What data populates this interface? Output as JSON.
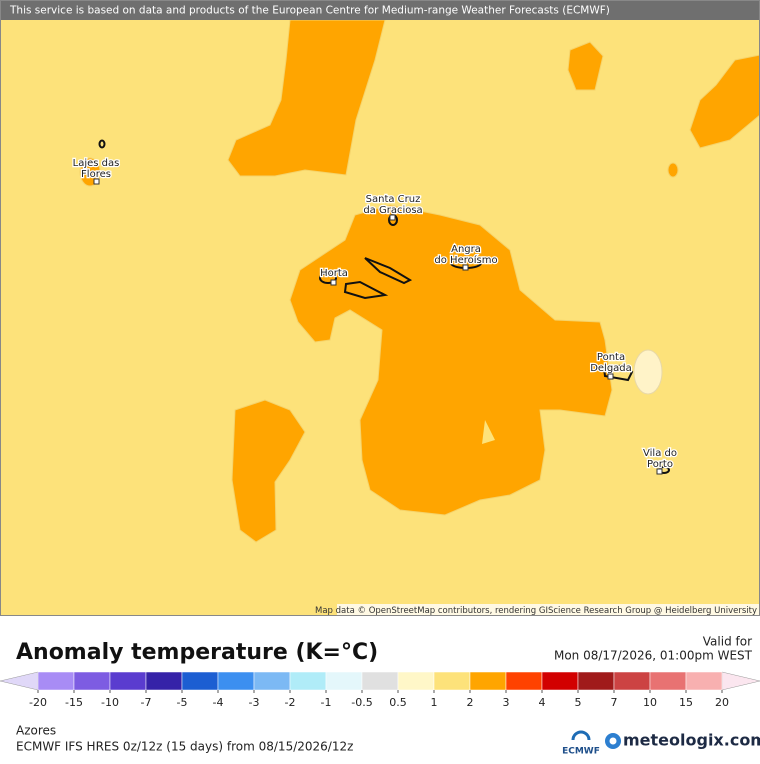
{
  "banner": "This service is based on data and products of the European Centre for Medium-range Weather Forecasts (ECMWF)",
  "attribution": "Map data © OpenStreetMap contributors, rendering GIScience Research Group @ Heidelberg University",
  "cities": [
    {
      "lines": [
        "Lajes das",
        "Flores"
      ]
    },
    {
      "lines": [
        "Santa Cruz",
        "da Graciosa"
      ]
    },
    {
      "lines": [
        "Horta"
      ]
    },
    {
      "lines": [
        "Angra",
        "do Heroísmo"
      ]
    },
    {
      "lines": [
        "Ponta",
        "Delgada"
      ]
    },
    {
      "lines": [
        "Vila do",
        "Porto"
      ]
    }
  ],
  "title": "Anomaly temperature (K=°C)",
  "valid_label": "Valid for",
  "valid_time": "Mon 08/17/2026, 01:00pm WEST",
  "legend": {
    "ticks": [
      -20,
      -15,
      -10,
      -7,
      -5,
      -4,
      -3,
      -2,
      -1,
      -0.5,
      0.5,
      1,
      2,
      3,
      4,
      5,
      7,
      10,
      15,
      20
    ],
    "colors": [
      "#a88cf5",
      "#7d5ce2",
      "#5a3ccf",
      "#3522a8",
      "#1c5ed2",
      "#3c8ff0",
      "#7cb9f4",
      "#b0ecf8",
      "#e4f7fb",
      "#e0e0e0",
      "#fff7c8",
      "#fde27a",
      "#ffa500",
      "#ff4200",
      "#d20000",
      "#a01a1a",
      "#cc4343",
      "#e87272",
      "#f8b0b0"
    ],
    "low_color": "#e0d8f8",
    "high_color": "#fbe6ef"
  },
  "region": "Azores",
  "model": "ECMWF IFS HRES 0z/12z (15 days) from 08/15/2026/12z",
  "logo_ecmwf": "ECMWF",
  "logo_site": "meteologix.com"
}
